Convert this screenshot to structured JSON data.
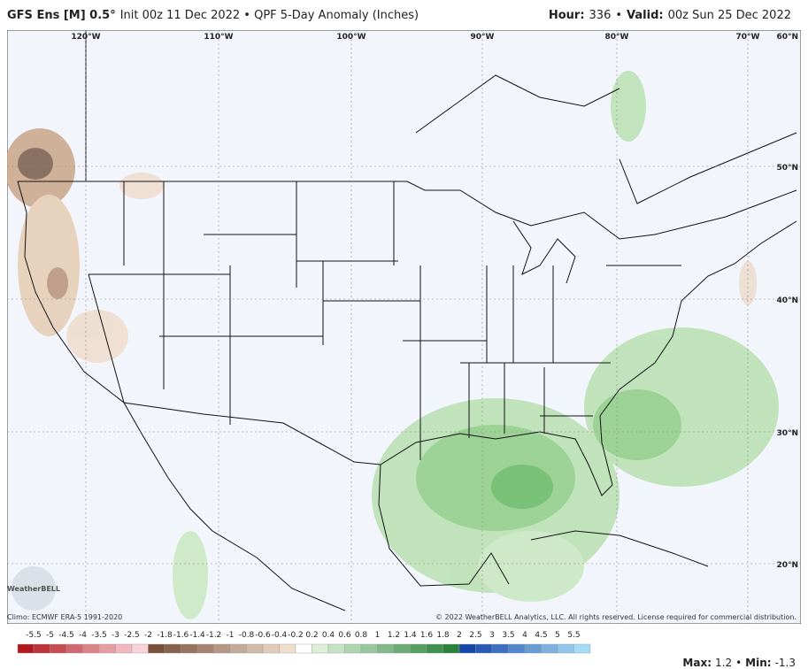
{
  "header": {
    "model": "GFS Ens [M] 0.5°",
    "info": "Init 00z 11 Dec 2022 • QPF 5-Day Anomaly (Inches)",
    "hour_label": "Hour:",
    "hour": "336",
    "sep": "•",
    "valid_label": "Valid:",
    "valid": "00z Sun 25 Dec 2022"
  },
  "map": {
    "longitudes": [
      "120°W",
      "110°W",
      "100°W",
      "90°W",
      "80°W",
      "70°W"
    ],
    "latitudes": [
      "60°N",
      "50°N",
      "40°N",
      "30°N",
      "20°N"
    ]
  },
  "colorbar": {
    "labels": [
      "-5.5",
      "-5",
      "-4.5",
      "-4",
      "-3.5",
      "-3",
      "-2.5",
      "-2",
      "-1.8",
      "-1.6",
      "-1.4",
      "-1.2",
      "-1",
      "-0.8",
      "-0.6",
      "-0.4",
      "-0.2",
      "0.2",
      "0.4",
      "0.6",
      "0.8",
      "1",
      "1.2",
      "1.4",
      "1.6",
      "1.8",
      "2",
      "2.5",
      "3",
      "3.5",
      "4",
      "4.5",
      "5",
      "5.5"
    ]
  },
  "footer": {
    "logo": "WeatherBELL",
    "climo": "Climo: ECMWF ERA-5 1991-2020",
    "copyright": "© 2022 WeatherBELL Analytics, LLC. All rights reserved. License required for commercial distribution.",
    "max_label": "Max:",
    "max": "1.2",
    "sep": "•",
    "min_label": "Min:",
    "min": "-1.3"
  }
}
